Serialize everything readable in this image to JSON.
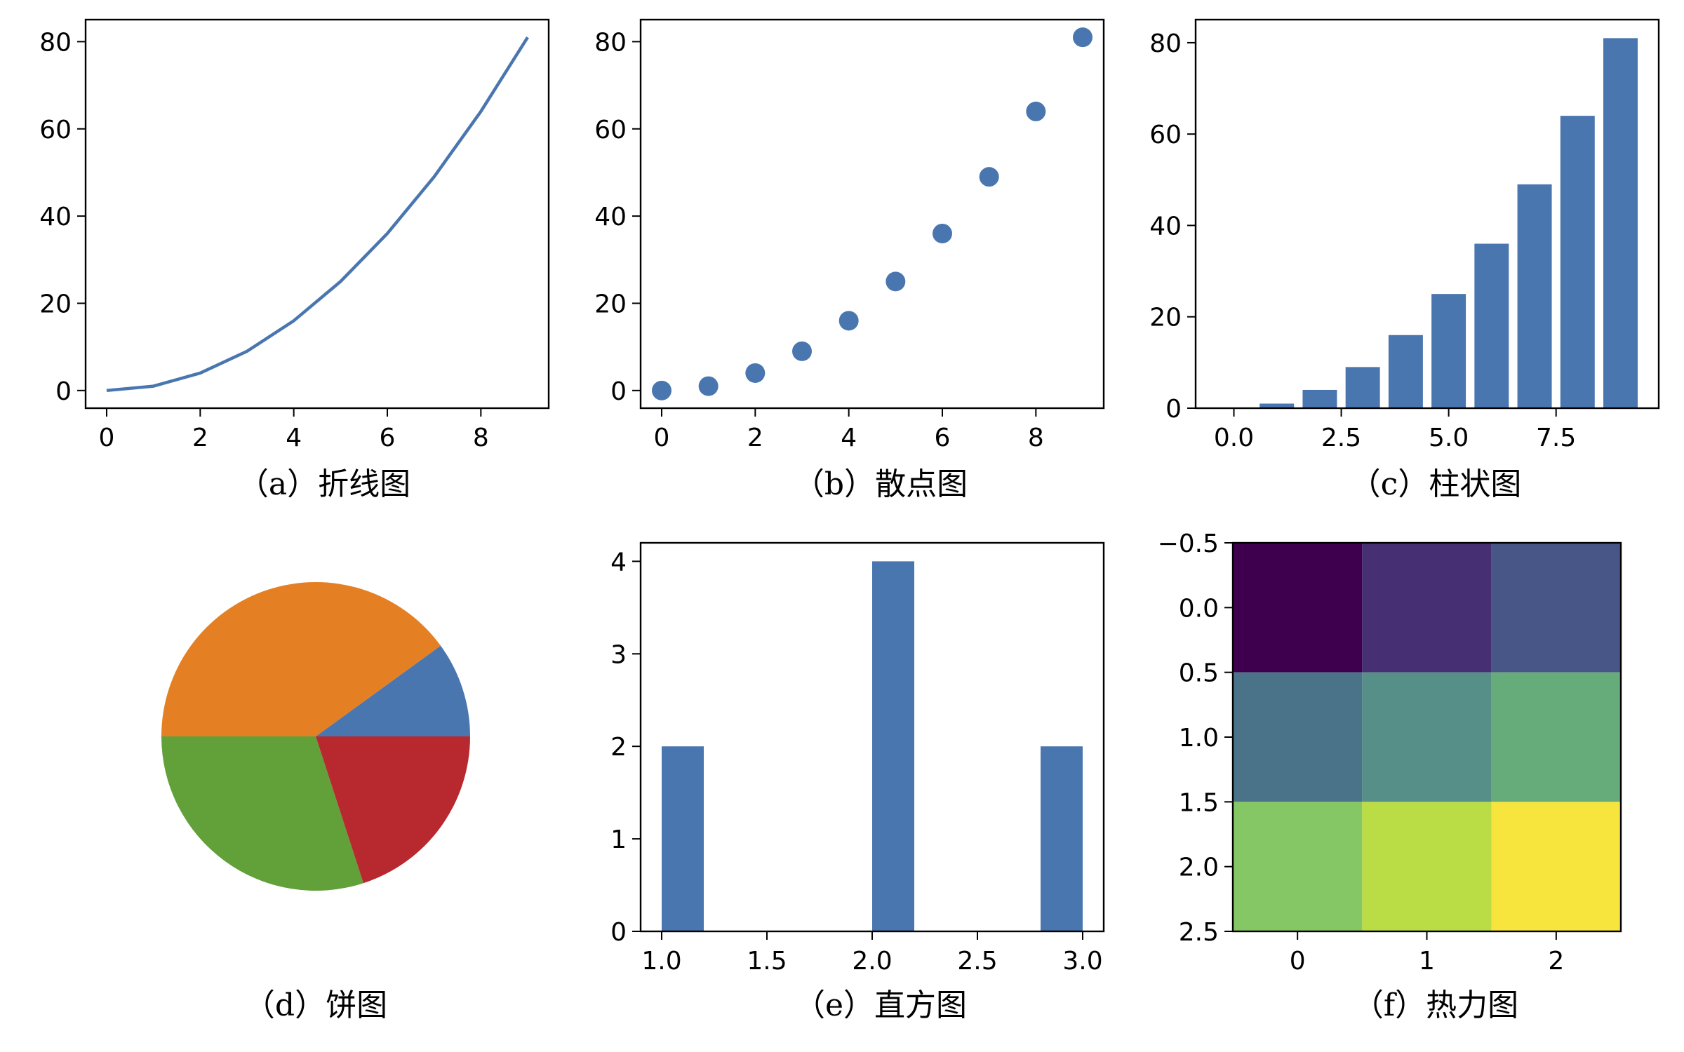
{
  "chart_data": [
    {
      "id": "a",
      "type": "line",
      "caption": "（a）折线图",
      "x": [
        0,
        1,
        2,
        3,
        4,
        5,
        6,
        7,
        8,
        9
      ],
      "y": [
        0,
        1,
        4,
        9,
        16,
        25,
        36,
        49,
        64,
        81
      ],
      "xlim": [
        -0.45,
        9.45
      ],
      "ylim": [
        -4.05,
        85.05
      ],
      "xticks": [
        0,
        2,
        4,
        6,
        8
      ],
      "xtick_labels": [
        "0",
        "2",
        "4",
        "6",
        "8"
      ],
      "yticks": [
        0,
        20,
        40,
        60,
        80
      ],
      "ytick_labels": [
        "0",
        "20",
        "40",
        "60",
        "80"
      ],
      "color": "#4a76b0"
    },
    {
      "id": "b",
      "type": "scatter",
      "caption": "（b）散点图",
      "x": [
        0,
        1,
        2,
        3,
        4,
        5,
        6,
        7,
        8,
        9
      ],
      "y": [
        0,
        1,
        4,
        9,
        16,
        25,
        36,
        49,
        64,
        81
      ],
      "xlim": [
        -0.45,
        9.45
      ],
      "ylim": [
        -4.05,
        85.05
      ],
      "xticks": [
        0,
        2,
        4,
        6,
        8
      ],
      "xtick_labels": [
        "0",
        "2",
        "4",
        "6",
        "8"
      ],
      "yticks": [
        0,
        20,
        40,
        60,
        80
      ],
      "ytick_labels": [
        "0",
        "20",
        "40",
        "60",
        "80"
      ],
      "color": "#4a76b0"
    },
    {
      "id": "c",
      "type": "bar",
      "caption": "（c）柱状图",
      "x": [
        0,
        1,
        2,
        3,
        4,
        5,
        6,
        7,
        8,
        9
      ],
      "values": [
        0,
        1,
        4,
        9,
        16,
        25,
        36,
        49,
        64,
        81
      ],
      "bar_width": 0.8,
      "xlim": [
        -0.89,
        9.89
      ],
      "ylim": [
        0,
        85.05
      ],
      "xticks": [
        0,
        2.5,
        5,
        7.5
      ],
      "xtick_labels": [
        "0.0",
        "2.5",
        "5.0",
        "7.5"
      ],
      "yticks": [
        0,
        20,
        40,
        60,
        80
      ],
      "ytick_labels": [
        "0",
        "20",
        "40",
        "60",
        "80"
      ],
      "color": "#4a76b0"
    },
    {
      "id": "d",
      "type": "pie",
      "caption": "（d）饼图",
      "values": [
        10,
        40,
        30,
        20
      ],
      "colors": [
        "#4a76b0",
        "#e48023",
        "#62a03a",
        "#b8292f"
      ]
    },
    {
      "id": "e",
      "type": "histogram",
      "caption": "（e）直方图",
      "bin_edges": [
        1.0,
        1.2,
        1.4,
        1.6,
        1.8,
        2.0,
        2.2,
        2.4,
        2.6,
        2.8,
        3.0
      ],
      "counts": [
        2,
        0,
        0,
        0,
        0,
        4,
        0,
        0,
        0,
        2
      ],
      "xlim": [
        0.9,
        3.1
      ],
      "ylim": [
        0,
        4.2
      ],
      "xticks": [
        1.0,
        1.5,
        2.0,
        2.5,
        3.0
      ],
      "xtick_labels": [
        "1.0",
        "1.5",
        "2.0",
        "2.5",
        "3.0"
      ],
      "yticks": [
        0,
        1,
        2,
        3,
        4
      ],
      "ytick_labels": [
        "0",
        "1",
        "2",
        "3",
        "4"
      ],
      "color": "#4a76b0"
    },
    {
      "id": "f",
      "type": "heatmap",
      "caption": "（f）热力图",
      "matrix": [
        [
          1,
          2,
          3
        ],
        [
          4,
          5,
          6
        ],
        [
          7,
          8,
          9
        ]
      ],
      "colors": [
        [
          "#3e004e",
          "#472f73",
          "#475686"
        ],
        [
          "#4a7289",
          "#558f88",
          "#66ac7b"
        ],
        [
          "#85c765",
          "#badc45",
          "#f7e43d"
        ]
      ],
      "xlim": [
        -0.5,
        2.5
      ],
      "ylim": [
        2.5,
        -0.5
      ],
      "xticks": [
        0,
        1,
        2
      ],
      "xtick_labels": [
        "0",
        "1",
        "2"
      ],
      "yticks": [
        -0.5,
        0,
        0.5,
        1,
        1.5,
        2,
        2.5
      ],
      "ytick_labels": [
        "−0.5",
        "0.0",
        "0.5",
        "1.0",
        "1.5",
        "2.0",
        "2.5"
      ]
    }
  ]
}
